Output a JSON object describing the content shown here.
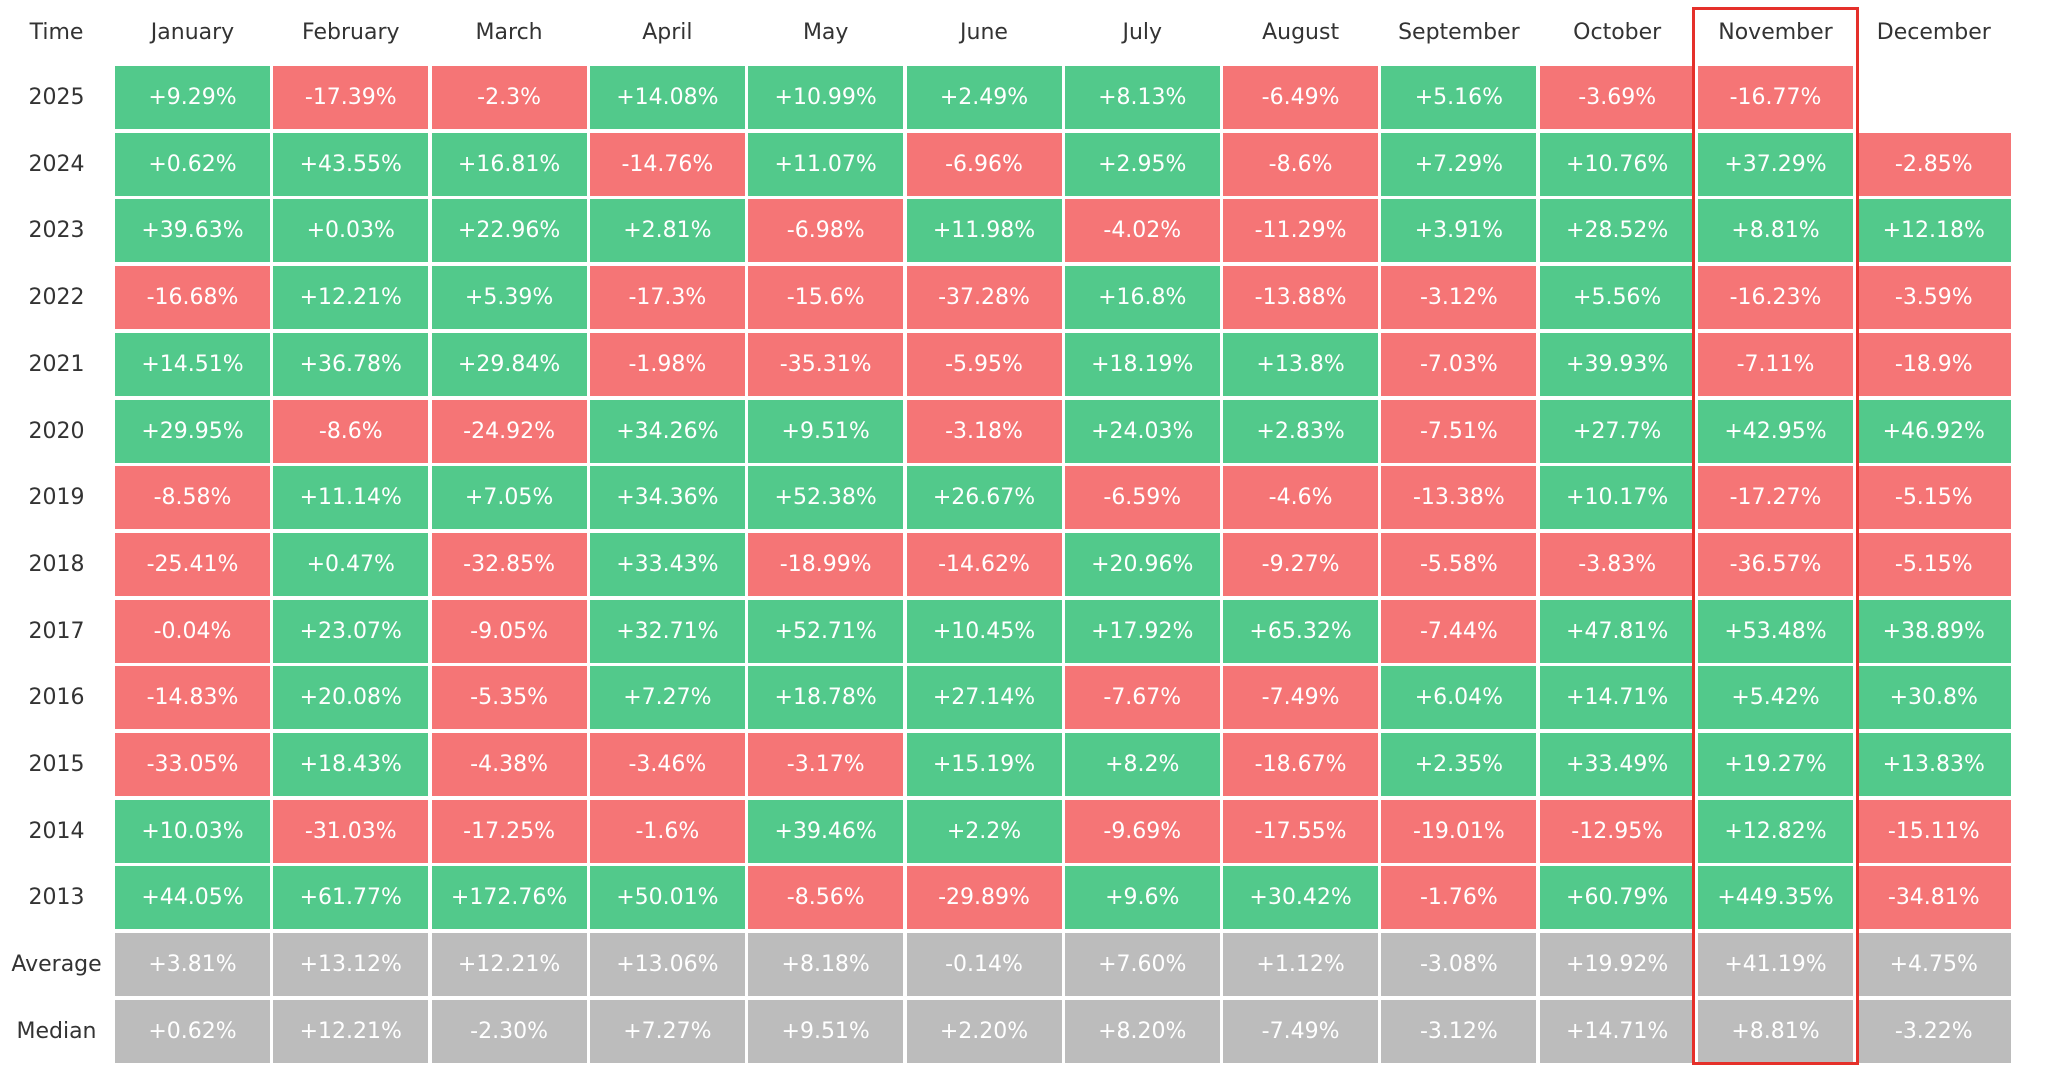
{
  "table": {
    "header": [
      "Time",
      "January",
      "February",
      "March",
      "April",
      "May",
      "June",
      "July",
      "August",
      "September",
      "October",
      "November",
      "December"
    ],
    "colors": {
      "positive": "#52c98b",
      "negative": "#f57576",
      "summary": "#bcbcbc",
      "highlight": "#e5302a"
    },
    "rows": [
      [
        "2025",
        "+9.29%",
        "-17.39%",
        "-2.3%",
        "+14.08%",
        "+10.99%",
        "+2.49%",
        "+8.13%",
        "-6.49%",
        "+5.16%",
        "-3.69%",
        "-16.77%"
      ],
      [
        "2024",
        "+0.62%",
        "+43.55%",
        "+16.81%",
        "-14.76%",
        "+11.07%",
        "-6.96%",
        "+2.95%",
        "-8.6%",
        "+7.29%",
        "+10.76%",
        "+37.29%",
        "-2.85%"
      ],
      [
        "2023",
        "+39.63%",
        "+0.03%",
        "+22.96%",
        "+2.81%",
        "-6.98%",
        "+11.98%",
        "-4.02%",
        "-11.29%",
        "+3.91%",
        "+28.52%",
        "+8.81%",
        "+12.18%"
      ],
      [
        "2022",
        "-16.68%",
        "+12.21%",
        "+5.39%",
        "-17.3%",
        "-15.6%",
        "-37.28%",
        "+16.8%",
        "-13.88%",
        "-3.12%",
        "+5.56%",
        "-16.23%",
        "-3.59%"
      ],
      [
        "2021",
        "+14.51%",
        "+36.78%",
        "+29.84%",
        "-1.98%",
        "-35.31%",
        "-5.95%",
        "+18.19%",
        "+13.8%",
        "-7.03%",
        "+39.93%",
        "-7.11%",
        "-18.9%"
      ],
      [
        "2020",
        "+29.95%",
        "-8.6%",
        "-24.92%",
        "+34.26%",
        "+9.51%",
        "-3.18%",
        "+24.03%",
        "+2.83%",
        "-7.51%",
        "+27.7%",
        "+42.95%",
        "+46.92%"
      ],
      [
        "2019",
        "-8.58%",
        "+11.14%",
        "+7.05%",
        "+34.36%",
        "+52.38%",
        "+26.67%",
        "-6.59%",
        "-4.6%",
        "-13.38%",
        "+10.17%",
        "-17.27%",
        "-5.15%"
      ],
      [
        "2018",
        "-25.41%",
        "+0.47%",
        "-32.85%",
        "+33.43%",
        "-18.99%",
        "-14.62%",
        "+20.96%",
        "-9.27%",
        "-5.58%",
        "-3.83%",
        "-36.57%",
        "-5.15%"
      ],
      [
        "2017",
        "-0.04%",
        "+23.07%",
        "-9.05%",
        "+32.71%",
        "+52.71%",
        "+10.45%",
        "+17.92%",
        "+65.32%",
        "-7.44%",
        "+47.81%",
        "+53.48%",
        "+38.89%"
      ],
      [
        "2016",
        "-14.83%",
        "+20.08%",
        "-5.35%",
        "+7.27%",
        "+18.78%",
        "+27.14%",
        "-7.67%",
        "-7.49%",
        "+6.04%",
        "+14.71%",
        "+5.42%",
        "+30.8%"
      ],
      [
        "2015",
        "-33.05%",
        "+18.43%",
        "-4.38%",
        "-3.46%",
        "-3.17%",
        "+15.19%",
        "+8.2%",
        "-18.67%",
        "+2.35%",
        "+33.49%",
        "+19.27%",
        "+13.83%"
      ],
      [
        "2014",
        "+10.03%",
        "-31.03%",
        "-17.25%",
        "-1.6%",
        "+39.46%",
        "+2.2%",
        "-9.69%",
        "-17.55%",
        "-19.01%",
        "-12.95%",
        "+12.82%",
        "-15.11%"
      ],
      [
        "2013",
        "+44.05%",
        "+61.77%",
        "+172.76%",
        "+50.01%",
        "-8.56%",
        "-29.89%",
        "+9.6%",
        "+30.42%",
        "-1.76%",
        "+60.79%",
        "+449.35%",
        "-34.81%"
      ]
    ],
    "summary_rows": [
      [
        "Average",
        "+3.81%",
        "+13.12%",
        "+12.21%",
        "+13.06%",
        "+8.18%",
        "-0.14%",
        "+7.60%",
        "+1.12%",
        "-3.08%",
        "+19.92%",
        "+41.19%",
        "+4.75%"
      ],
      [
        "Median",
        "+0.62%",
        "+12.21%",
        "-2.30%",
        "+7.27%",
        "+9.51%",
        "+2.20%",
        "+8.20%",
        "-7.49%",
        "-3.12%",
        "+14.71%",
        "+8.81%",
        "-3.22%"
      ]
    ],
    "highlighted_column": "November"
  }
}
